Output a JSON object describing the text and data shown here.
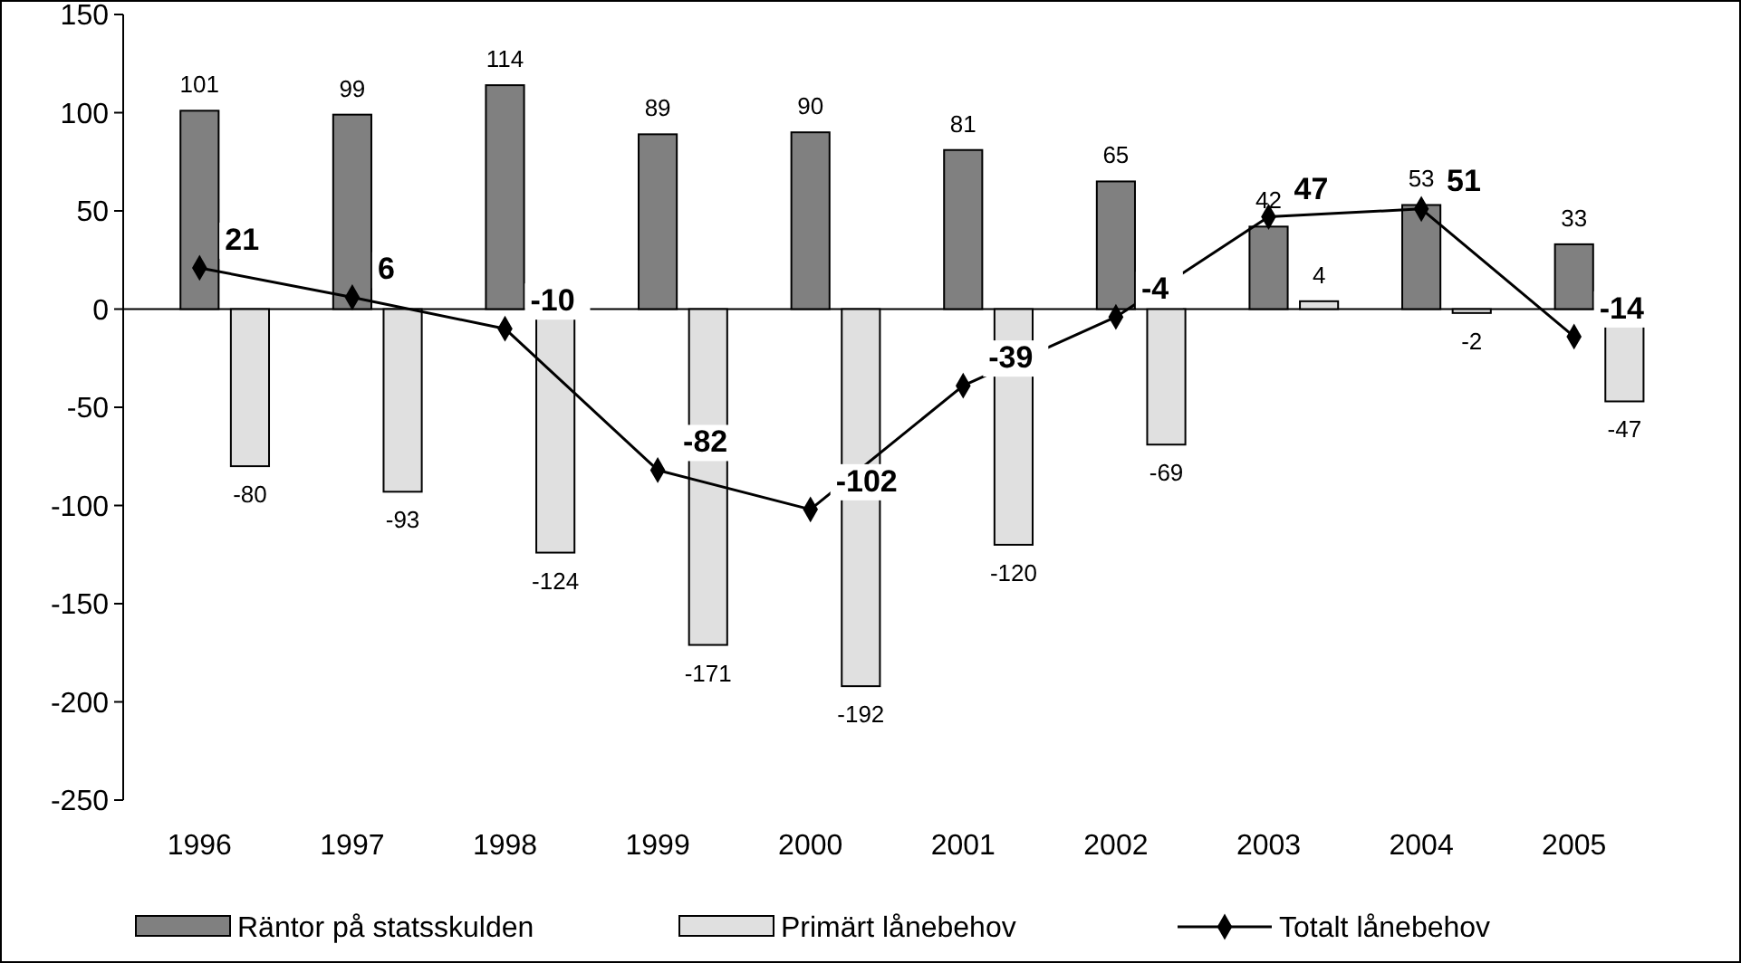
{
  "chart_data": {
    "type": "bar",
    "categories": [
      "1996",
      "1997",
      "1998",
      "1999",
      "2000",
      "2001",
      "2002",
      "2003",
      "2004",
      "2005"
    ],
    "series": [
      {
        "name": "Räntor på statsskulden",
        "color": "#808080",
        "values": [
          101,
          99,
          114,
          89,
          90,
          81,
          65,
          42,
          53,
          33
        ]
      },
      {
        "name": "Primärt lånebehov",
        "color": "#e0e0e0",
        "values": [
          -80,
          -93,
          -124,
          -171,
          -192,
          -120,
          -69,
          4,
          -2,
          -47
        ]
      },
      {
        "name": "Totalt lånebehov",
        "type": "line",
        "color": "#000000",
        "marker": "diamond",
        "values": [
          21,
          6,
          -10,
          -82,
          -102,
          -39,
          -4,
          47,
          51,
          -14
        ]
      }
    ],
    "ylim": [
      -250,
      150
    ],
    "yticks": [
      -250,
      -200,
      -150,
      -100,
      -50,
      0,
      50,
      100,
      150
    ],
    "data_labels": true,
    "legend": "bottom"
  }
}
